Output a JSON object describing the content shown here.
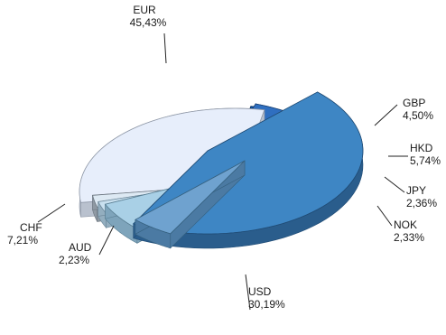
{
  "chart_data": {
    "type": "pie",
    "title": "",
    "slices": [
      {
        "label": "EUR",
        "value_text": "45,43%",
        "value": 45.43,
        "color": "#3e86c4",
        "side": "#2a5d8c",
        "edge": "#1f4a73"
      },
      {
        "label": "GBP",
        "value_text": "4,50%",
        "value": 4.5,
        "color": "#6fa2cf",
        "side": "#4b7aa3",
        "edge": "#35607f"
      },
      {
        "label": "HKD",
        "value_text": "5,74%",
        "value": 5.74,
        "color": "#a9d0e6",
        "side": "#7ea4bb",
        "edge": "#5a7f93"
      },
      {
        "label": "JPY",
        "value_text": "2,36%",
        "value": 2.36,
        "color": "#c9e0ef",
        "side": "#93aebf",
        "edge": "#6d8799"
      },
      {
        "label": "NOK",
        "value_text": "2,33%",
        "value": 2.33,
        "color": "#dde9f3",
        "side": "#8f99a3",
        "edge": "#6c7680"
      },
      {
        "label": "USD",
        "value_text": "30,19%",
        "value": 30.19,
        "color": "#e7eefb",
        "side": "#b9c1ce",
        "edge": "#8e97a6"
      },
      {
        "label": "AUD",
        "value_text": "2,23%",
        "value": 2.23,
        "color": "#0a4fa3",
        "side": "#083a78",
        "edge": "#062c5a"
      },
      {
        "label": "CHF",
        "value_text": "7,21%",
        "value": 7.21,
        "color": "#2f6fc0",
        "side": "#1f4f8d",
        "edge": "#163d6e"
      }
    ]
  }
}
